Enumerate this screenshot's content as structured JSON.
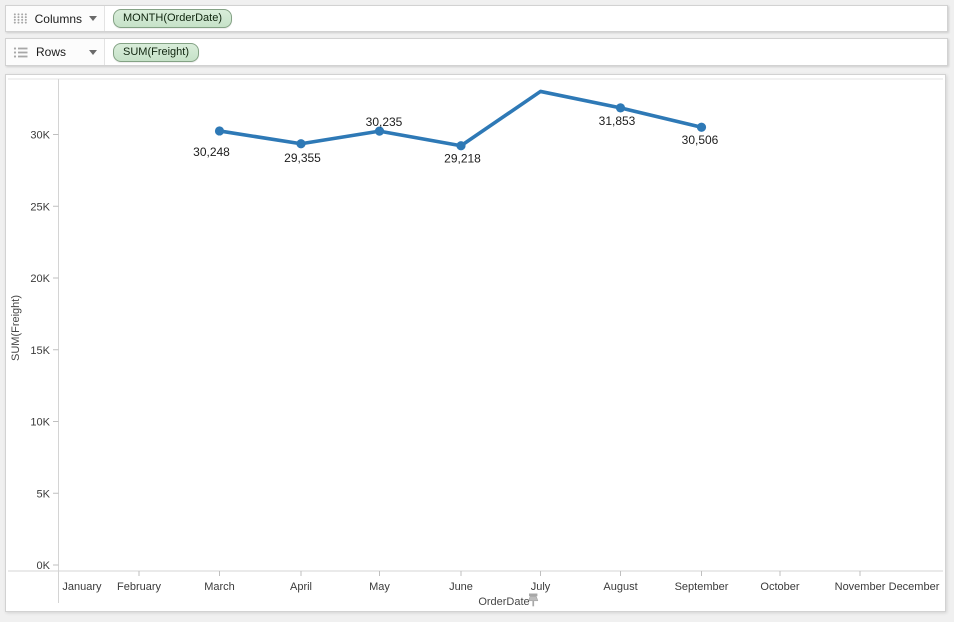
{
  "shelves": {
    "columns": {
      "label": "Columns",
      "pills": [
        {
          "text": "MONTH(OrderDate)"
        }
      ]
    },
    "rows": {
      "label": "Rows",
      "pills": [
        {
          "text": "SUM(Freight)"
        }
      ]
    }
  },
  "colors": {
    "line": "#2E79B6",
    "pill_bg": "#cde7cf",
    "pill_border": "#84a285",
    "axis_line": "#d4d4d4",
    "tick": "#bfbfbf",
    "tick_text": "#3b3b3b",
    "data_label_text": "#1d1d1d",
    "axis_title_text": "#474747",
    "panel_bg": "#ffffff",
    "app_bg": "#f0f0f0"
  },
  "icons": {
    "columns_shelf": "columns-grid-icon",
    "rows_shelf": "rows-list-icon",
    "dropdown": "chevron-down-icon",
    "axis_pin": "pin-icon"
  },
  "chart_data": {
    "type": "line",
    "title": "",
    "xlabel": "OrderDate",
    "ylabel": "SUM(Freight)",
    "grid": false,
    "legend": "none",
    "x_axis_months": [
      "January",
      "February",
      "March",
      "April",
      "May",
      "June",
      "July",
      "August",
      "September",
      "October",
      "November",
      "December"
    ],
    "y_ticks": [
      {
        "value": 0,
        "label": "0K"
      },
      {
        "value": 5000,
        "label": "5K"
      },
      {
        "value": 10000,
        "label": "10K"
      },
      {
        "value": 15000,
        "label": "15K"
      },
      {
        "value": 20000,
        "label": "20K"
      },
      {
        "value": 25000,
        "label": "25K"
      },
      {
        "value": 30000,
        "label": "30K"
      }
    ],
    "ylim": [
      0,
      34000
    ],
    "series": [
      {
        "name": "SUM(Freight)",
        "color": "#2E79B6",
        "points": [
          {
            "month": "March",
            "value": 30248,
            "label": "30,248",
            "marker": true
          },
          {
            "month": "April",
            "value": 29355,
            "label": "29,355",
            "marker": true
          },
          {
            "month": "May",
            "value": 30235,
            "label": "30,235",
            "marker": true
          },
          {
            "month": "June",
            "value": 29218,
            "label": "29,218",
            "marker": true
          },
          {
            "month": "July",
            "value": 33000,
            "label": "",
            "marker": false,
            "estimated": true
          },
          {
            "month": "August",
            "value": 31853,
            "label": "31,853",
            "marker": true
          },
          {
            "month": "September",
            "value": 30506,
            "label": "30,506",
            "marker": true
          }
        ]
      }
    ]
  }
}
